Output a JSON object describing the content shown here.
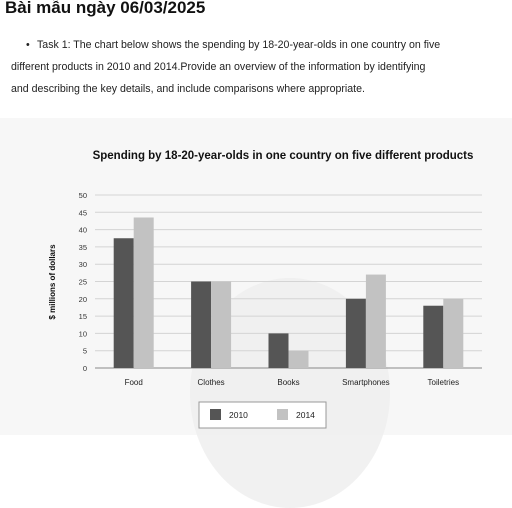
{
  "page": {
    "title": "Bài mẫu ngày 06/03/2025",
    "task_bullet": "•",
    "task_line1": "Task 1: The chart below shows the spending by 18-20-year-olds in one country on five",
    "task_line2": "different products in 2010 and 2014.Provide an overview of the information by identifying",
    "task_line3": "and describing the key details, and include comparisons where appropriate."
  },
  "chart_data": {
    "type": "bar",
    "title": "Spending by 18-20-year-olds in one country on five different products",
    "xlabel": "",
    "ylabel": "$ millions of dollars",
    "categories": [
      "Food",
      "Clothes",
      "Books",
      "Smartphones",
      "Toiletries"
    ],
    "series": [
      {
        "name": "2010",
        "values": [
          37.5,
          25,
          10,
          20,
          18
        ],
        "color": "#555555"
      },
      {
        "name": "2014",
        "values": [
          43.5,
          25,
          5,
          27,
          20
        ],
        "color": "#c2c2c2"
      }
    ],
    "ylim": [
      0,
      50
    ],
    "yticks": [
      "0",
      "5",
      "10",
      "15",
      "20",
      "25",
      "30",
      "35",
      "40",
      "45",
      "50"
    ],
    "grid": true,
    "legend": "bottom-center"
  }
}
